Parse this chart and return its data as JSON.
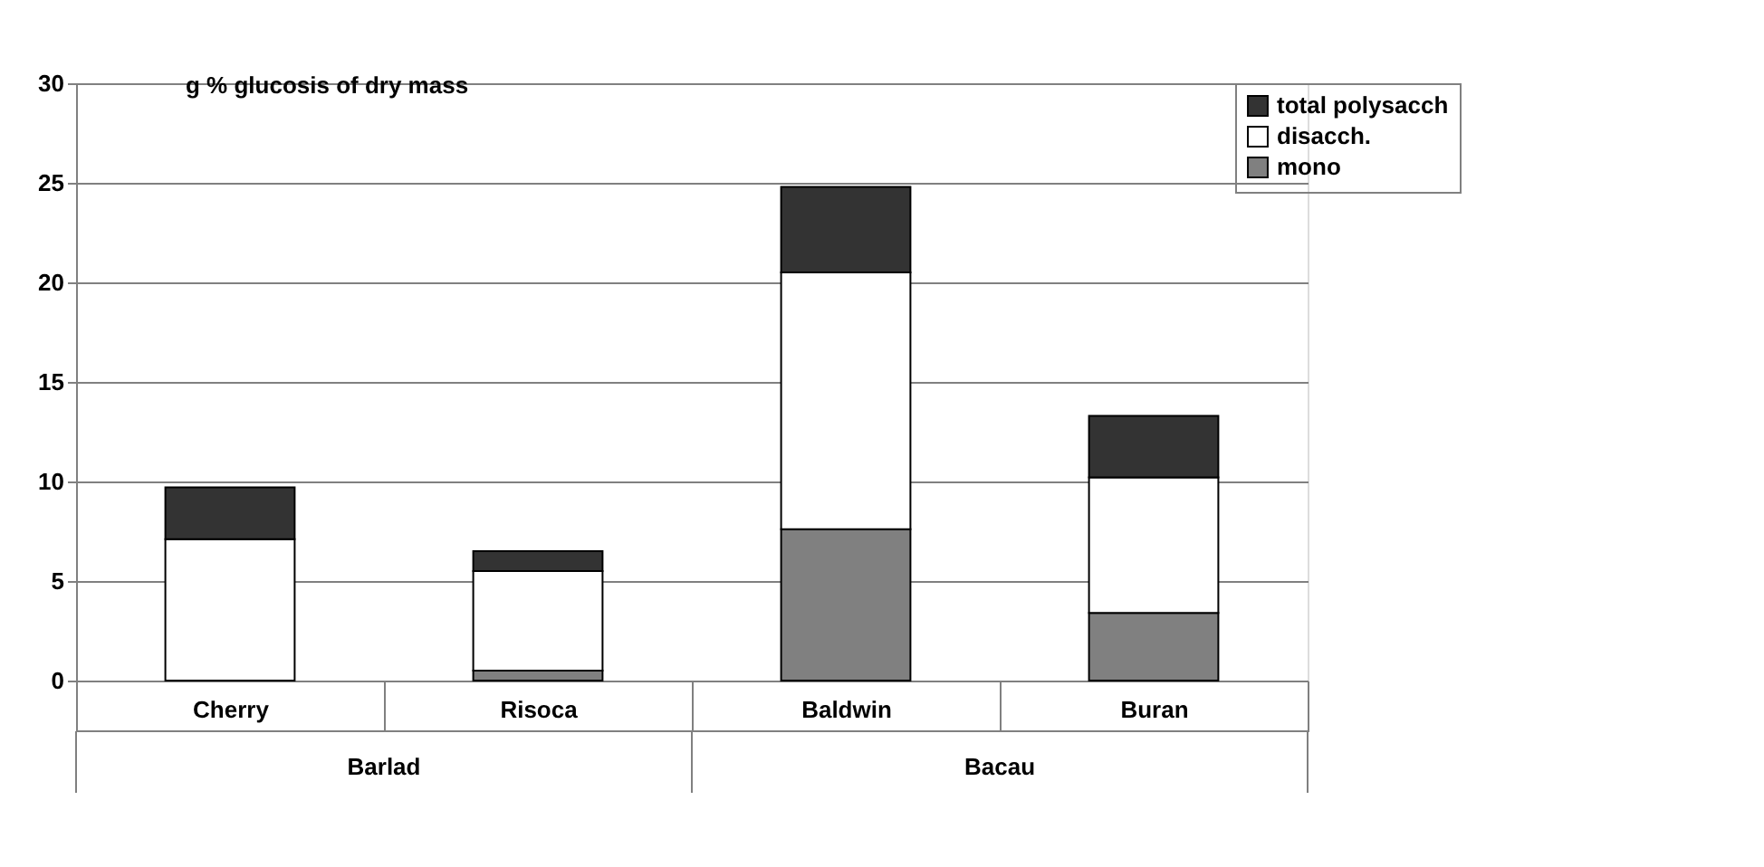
{
  "chart_data": {
    "type": "bar",
    "stacked": true,
    "ylabel": "g % glucosis of dry mass",
    "categories": [
      "Cherry",
      "Risoca",
      "Baldwin",
      "Buran"
    ],
    "annotations": [
      "Barlad",
      "Bacau"
    ],
    "series": [
      {
        "name": "mono",
        "color": "#808080",
        "values": [
          null,
          0.5,
          7.6,
          3.4
        ]
      },
      {
        "name": "disacch.",
        "color": "#ffffff",
        "values": [
          7.1,
          5.0,
          12.9,
          6.8
        ]
      },
      {
        "name": "total polysacch",
        "color": "#333333",
        "values": [
          2.6,
          1.0,
          4.3,
          3.1
        ]
      }
    ],
    "ylim": [
      0,
      30
    ],
    "yticks": [
      0,
      5,
      10,
      15,
      20,
      25,
      30
    ],
    "grid": "y",
    "legend": "top right"
  }
}
